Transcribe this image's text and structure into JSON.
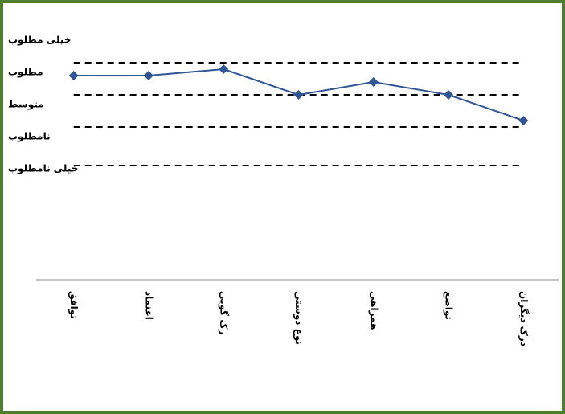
{
  "chart_data": {
    "type": "line",
    "categories": [
      "توافق",
      "اعتماد",
      "رک گویی",
      "نوع دوستی",
      "همراهی",
      "تواضع",
      "درک دیگران"
    ],
    "series": [
      {
        "color": "#2f5597",
        "values": [
          4.1,
          4.1,
          4.3,
          3.5,
          3.9,
          3.5,
          2.7
        ]
      }
    ],
    "ylim": [
      -2.25,
      6
    ],
    "yticks": [
      {
        "value": 5,
        "label": "خیلی مطلوب"
      },
      {
        "value": 4,
        "label": "مطلوب"
      },
      {
        "value": 3,
        "label": "متوسط"
      },
      {
        "value": 2,
        "label": "نامطلوب"
      },
      {
        "value": 1,
        "label": "خیلی نامطلوب"
      }
    ],
    "grid_lines": [
      4.5,
      3.5,
      2.5,
      1.3
    ]
  }
}
